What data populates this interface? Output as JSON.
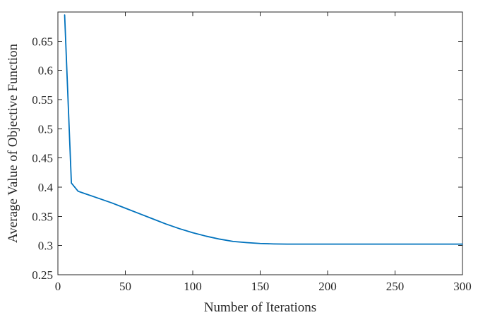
{
  "chart_data": {
    "type": "line",
    "xlabel": "Number of Iterations",
    "ylabel": "Average Value of Objective Function",
    "xlim": [
      0,
      300
    ],
    "ylim": [
      0.25,
      0.7
    ],
    "x_ticks": [
      0,
      50,
      100,
      150,
      200,
      250,
      300
    ],
    "x_tick_labels": [
      "0",
      "50",
      "100",
      "150",
      "200",
      "250",
      "300"
    ],
    "y_ticks": [
      0.25,
      0.3,
      0.35,
      0.4,
      0.45,
      0.5,
      0.55,
      0.6,
      0.65
    ],
    "y_tick_labels": [
      "0.25",
      "0.3",
      "0.35",
      "0.4",
      "0.45",
      "0.5",
      "0.55",
      "0.6",
      "0.65"
    ],
    "grid": false,
    "box": true,
    "series": [
      {
        "color": "#0072BD",
        "x": [
          5,
          10,
          15,
          20,
          30,
          40,
          50,
          60,
          70,
          80,
          90,
          100,
          110,
          120,
          130,
          140,
          150,
          160,
          170,
          180,
          200,
          220,
          240,
          260,
          280,
          300
        ],
        "y": [
          0.695,
          0.407,
          0.393,
          0.389,
          0.381,
          0.373,
          0.364,
          0.355,
          0.346,
          0.337,
          0.329,
          0.322,
          0.316,
          0.311,
          0.307,
          0.305,
          0.3035,
          0.3028,
          0.3025,
          0.3025,
          0.3025,
          0.3025,
          0.3025,
          0.3025,
          0.3025,
          0.3025
        ]
      }
    ]
  }
}
